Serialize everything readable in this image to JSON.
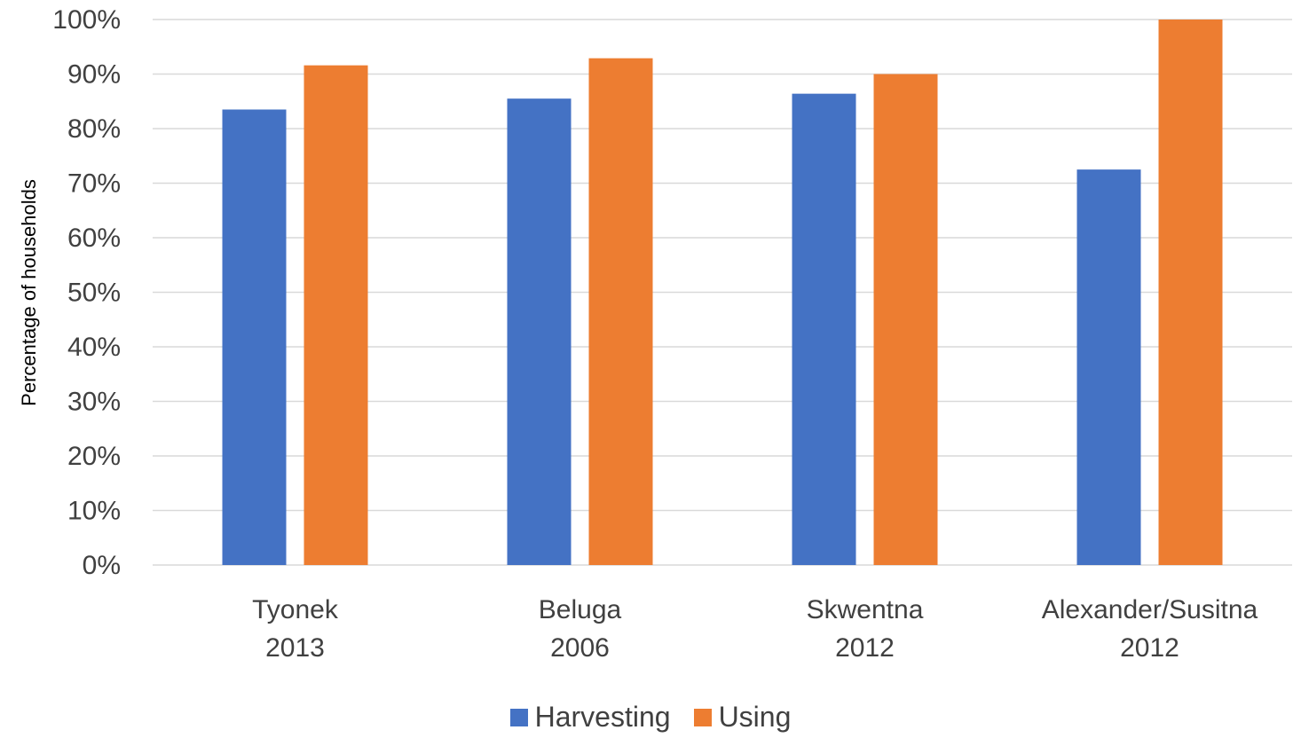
{
  "chart_data": {
    "type": "bar",
    "categories": [
      [
        "Tyonek",
        "2013"
      ],
      [
        "Beluga",
        "2006"
      ],
      [
        "Skwentna",
        "2012"
      ],
      [
        "Alexander/Susitna",
        "2012"
      ]
    ],
    "series": [
      {
        "name": "Harvesting",
        "color": "#4472C4",
        "values": [
          83.5,
          85.5,
          86.4,
          72.5
        ]
      },
      {
        "name": "Using",
        "color": "#ED7D31",
        "values": [
          91.6,
          92.9,
          90.0,
          100.0
        ]
      }
    ],
    "ylabel": "Percentage of households",
    "ylim": [
      0,
      100
    ],
    "yticks": [
      "0%",
      "10%",
      "20%",
      "30%",
      "40%",
      "50%",
      "60%",
      "70%",
      "80%",
      "90%",
      "100%"
    ],
    "grid": true,
    "legend_position": "bottom"
  }
}
